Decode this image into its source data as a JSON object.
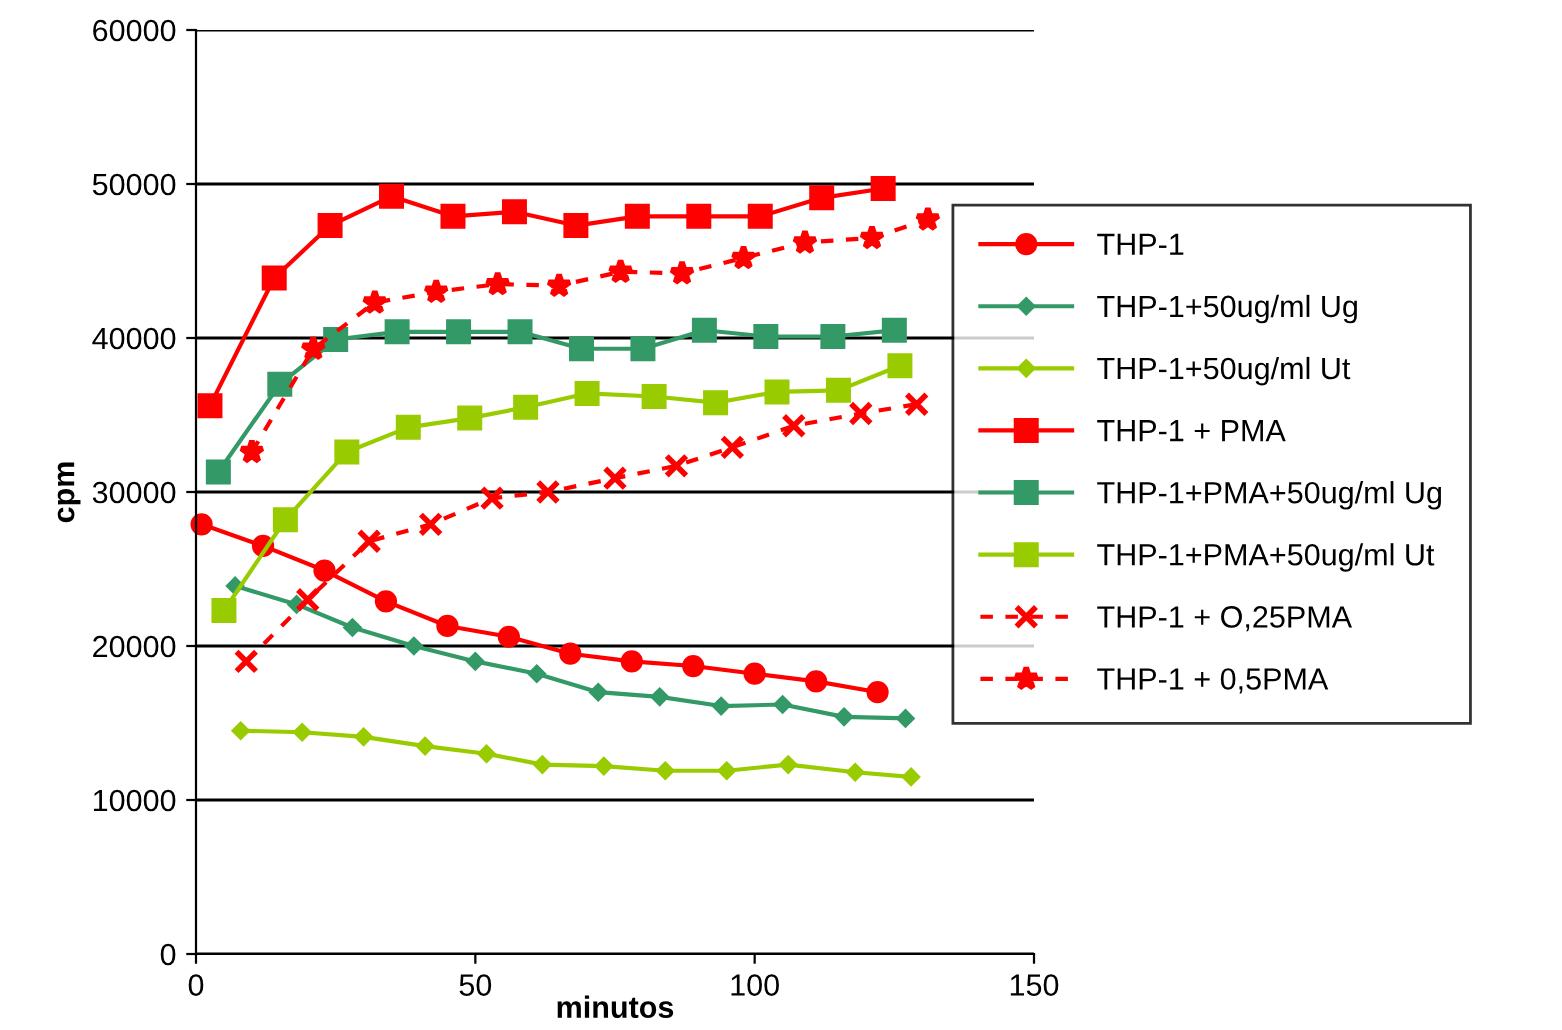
{
  "chart_data": {
    "type": "line",
    "xlabel": "minutos",
    "ylabel": "cpm",
    "xlim": [
      0,
      150
    ],
    "xticks": [
      0,
      50,
      100,
      150
    ],
    "ylim": [
      0,
      60000
    ],
    "yticks": [
      0,
      10000,
      20000,
      30000,
      40000,
      50000,
      60000
    ],
    "grid": "y",
    "legend": "right",
    "series": [
      {
        "name": "THP-1",
        "color": "#ff0000",
        "marker": "circle",
        "line_style": "solid",
        "x": [
          1,
          12,
          23,
          34,
          45,
          56,
          67,
          78,
          89,
          100,
          111,
          122
        ],
        "values": [
          27900,
          26500,
          24900,
          22900,
          21300,
          20600,
          19500,
          19000,
          18700,
          18200,
          17700,
          17000
        ]
      },
      {
        "name": "THP-1+50ug/ml Ug",
        "color": "#339966",
        "marker": "diamond",
        "line_style": "solid",
        "x": [
          7,
          18,
          28,
          39,
          50,
          61,
          72,
          83,
          94,
          105,
          116,
          127
        ],
        "values": [
          23900,
          22700,
          21200,
          20000,
          19000,
          18200,
          17000,
          16700,
          16100,
          16200,
          15400,
          15300
        ]
      },
      {
        "name": "THP-1+50ug/ml Ut",
        "color": "#99cc00",
        "marker": "diamond",
        "line_style": "solid",
        "x": [
          8,
          19,
          30,
          41,
          52,
          62,
          73,
          84,
          95,
          106,
          118,
          128
        ],
        "values": [
          14500,
          14400,
          14100,
          13500,
          13000,
          12300,
          12200,
          11900,
          11900,
          12300,
          11800,
          11500
        ]
      },
      {
        "name": "THP-1 + PMA",
        "color": "#ff0000",
        "marker": "square",
        "line_style": "solid",
        "x": [
          2.5,
          14,
          24,
          35,
          46,
          57,
          68,
          79,
          90,
          101,
          112,
          123
        ],
        "values": [
          35600,
          43900,
          47300,
          49200,
          47900,
          48200,
          47300,
          47900,
          47900,
          47900,
          49100,
          49700
        ]
      },
      {
        "name": "THP-1+PMA+50ug/ml Ug",
        "color": "#339966",
        "marker": "square",
        "line_style": "solid",
        "x": [
          4,
          15,
          25,
          36,
          47,
          58,
          69,
          80,
          91,
          102,
          114,
          125
        ],
        "values": [
          31300,
          37000,
          39900,
          40400,
          40400,
          40400,
          39300,
          39300,
          40500,
          40100,
          40100,
          40500
        ]
      },
      {
        "name": "THP-1+PMA+50ug/ml Ut",
        "color": "#99cc00",
        "marker": "square",
        "line_style": "solid",
        "x": [
          5,
          16,
          27,
          38,
          49,
          59,
          70,
          82,
          93,
          104,
          115,
          126
        ],
        "values": [
          22300,
          28200,
          32600,
          34200,
          34800,
          35500,
          36400,
          36200,
          35800,
          36500,
          36600,
          38200
        ]
      },
      {
        "name": "THP-1 + O,25PMA",
        "color": "#ff0000",
        "marker": "cross",
        "line_style": "dashed",
        "x": [
          9,
          20,
          31,
          42,
          53,
          63,
          75,
          86,
          96,
          107,
          119,
          129
        ],
        "values": [
          19000,
          23000,
          26800,
          27900,
          29600,
          30000,
          30900,
          31700,
          32900,
          34300,
          35100,
          35700
        ]
      },
      {
        "name": "THP-1 + 0,5PMA",
        "color": "#ff0000",
        "marker": "star",
        "line_style": "dashed",
        "x": [
          10,
          21,
          32,
          43,
          54,
          65,
          76,
          87,
          98,
          109,
          121,
          131
        ],
        "values": [
          32600,
          39300,
          42300,
          43000,
          43500,
          43400,
          44300,
          44200,
          45200,
          46200,
          46500,
          47700
        ]
      }
    ]
  }
}
